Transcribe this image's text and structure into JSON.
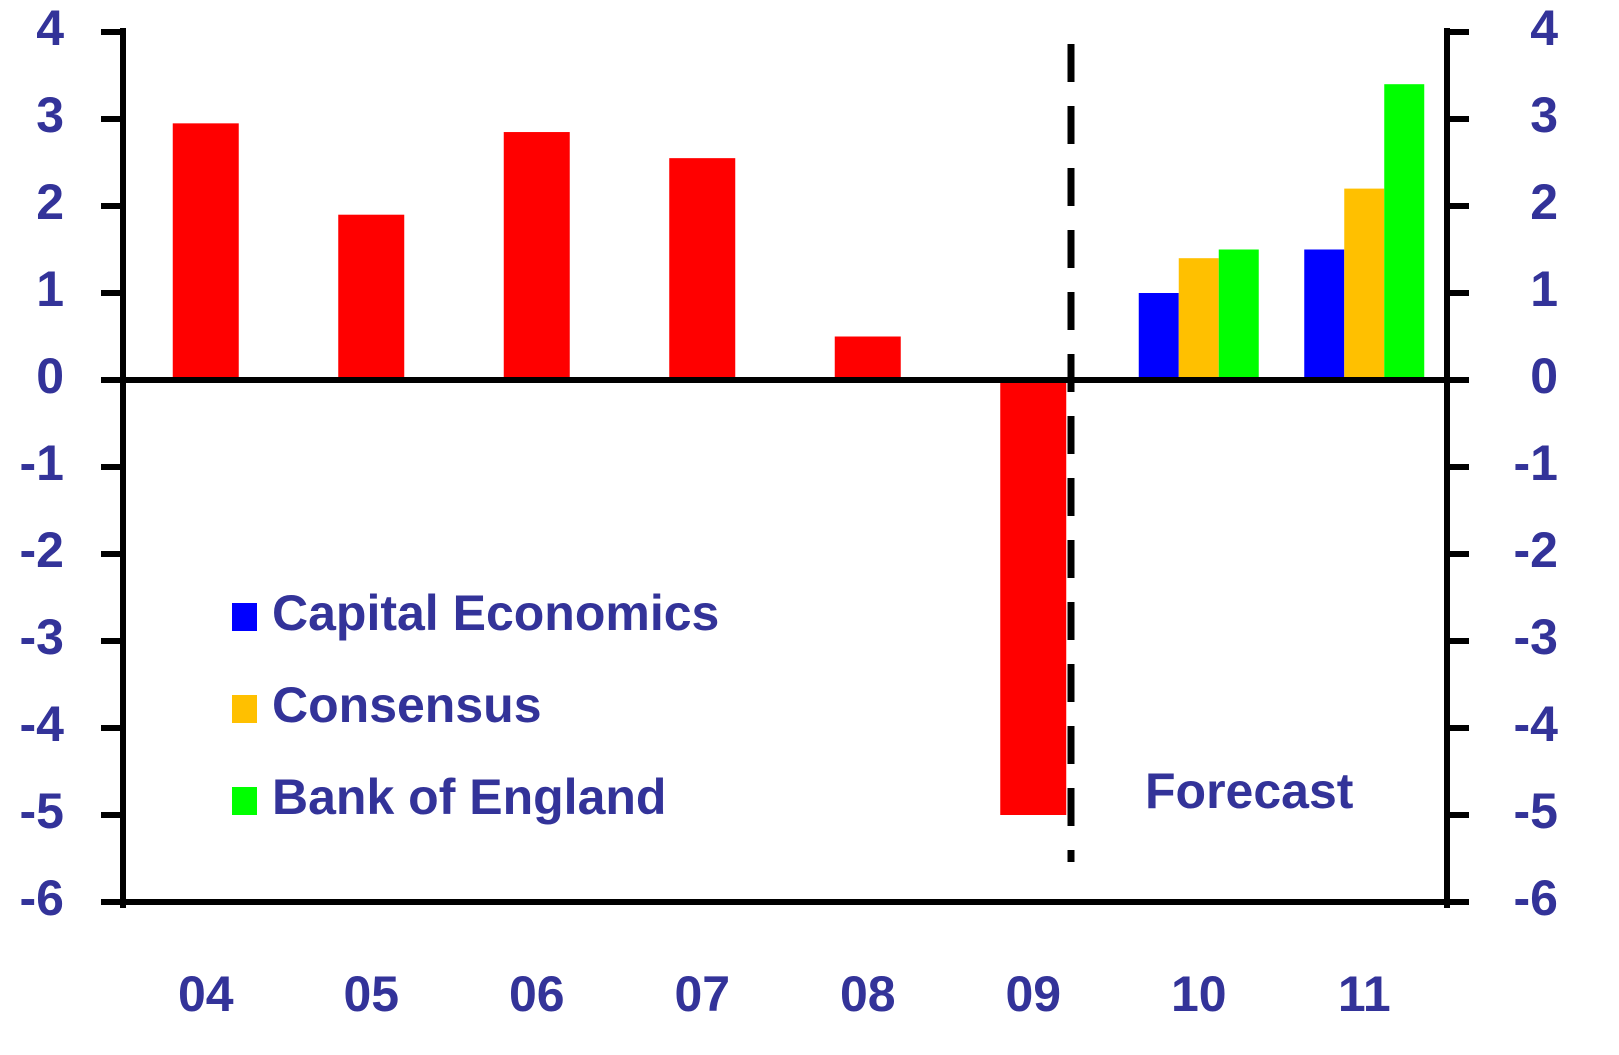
{
  "chart_data": {
    "type": "bar",
    "categories": [
      "04",
      "05",
      "06",
      "07",
      "08",
      "09",
      "10",
      "11"
    ],
    "values": [
      2.95,
      1.9,
      2.85,
      2.55,
      0.5,
      -5.0,
      null,
      null
    ],
    "color": "#ff0000",
    "series": [
      {
        "name": "Capital Economics",
        "color": "#0000ff",
        "values": [
          null,
          null,
          null,
          null,
          null,
          null,
          1.0,
          1.5
        ]
      },
      {
        "name": "Consensus",
        "color": "#ffc000",
        "values": [
          null,
          null,
          null,
          null,
          null,
          null,
          1.4,
          2.2
        ]
      },
      {
        "name": "Bank of England",
        "color": "#00ff00",
        "values": [
          null,
          null,
          null,
          null,
          null,
          null,
          1.5,
          3.4
        ]
      }
    ],
    "annotation": "Forecast",
    "ylim": [
      -6,
      4
    ],
    "yticks": [
      -6,
      -5,
      -4,
      -3,
      -2,
      -1,
      0,
      1,
      2,
      3,
      4
    ],
    "y2lim": [
      -6,
      4
    ],
    "y2ticks": [
      -6,
      -5,
      -4,
      -3,
      -2,
      -1,
      0,
      1,
      2,
      3,
      4
    ],
    "legend": "lower left"
  }
}
